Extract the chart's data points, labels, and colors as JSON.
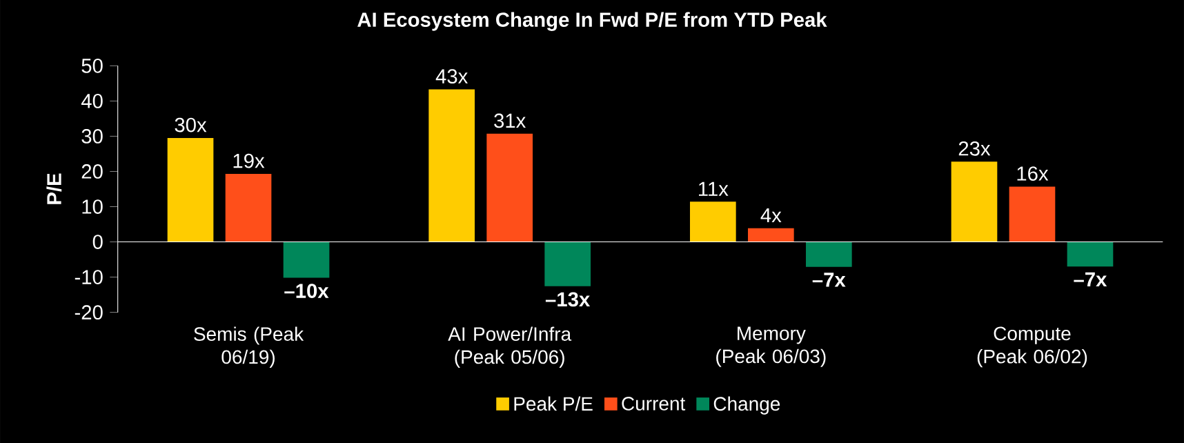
{
  "chart_data": {
    "type": "bar",
    "title": "AI Ecosystem Change In Fwd P/E from YTD Peak",
    "ylabel": "P/E",
    "categories": [
      "Semis (Peak 06/19)",
      "AI Power/Infra (Peak 05/06)",
      "Memory (Peak 06/03)",
      "Compute (Peak 06/02)"
    ],
    "series": [
      {
        "name": "Peak P/E",
        "color": "#ffcc00",
        "values": [
          29.5,
          43.3,
          11.4,
          22.8
        ],
        "value_labels": [
          "30x",
          "43x",
          "11x",
          "23x"
        ]
      },
      {
        "name": "Current",
        "color": "#ff4f1a",
        "values": [
          19.3,
          30.7,
          3.9,
          15.7
        ],
        "value_labels": [
          "19x",
          "31x",
          "4x",
          "16x"
        ]
      },
      {
        "name": "Change",
        "color": "#00875a",
        "values": [
          -10.2,
          -12.6,
          -7.1,
          -7.0
        ],
        "value_labels": [
          "–10x",
          "–13x",
          "–7x",
          "–7x"
        ]
      }
    ],
    "ylim": [
      -20,
      50
    ],
    "yticks": [
      -20,
      -10,
      0,
      10,
      20,
      30,
      40,
      50
    ],
    "legend": "bottom"
  }
}
